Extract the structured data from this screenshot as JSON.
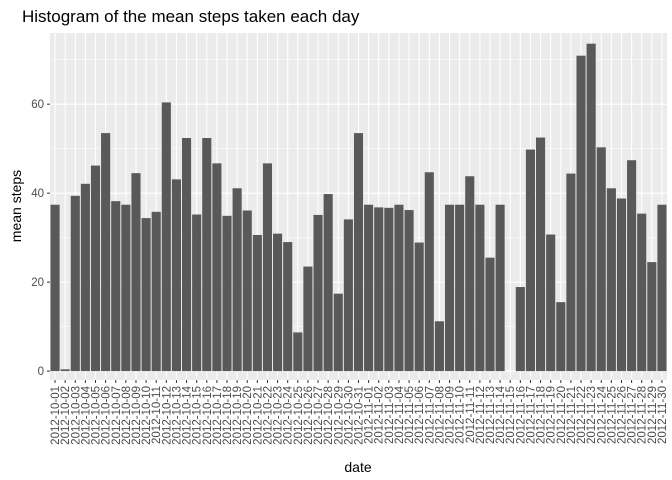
{
  "chart_data": {
    "type": "bar",
    "title": "Histogram of the mean steps taken each day",
    "xlabel": "date",
    "ylabel": "mean steps",
    "ylim": [
      -2,
      76
    ],
    "yticks": [
      0,
      20,
      40,
      60
    ],
    "grid": true,
    "bar_color": "#595959",
    "panel_color": "#ebebeb",
    "categories": [
      "2012-10-01",
      "2012-10-02",
      "2012-10-03",
      "2012-10-04",
      "2012-10-05",
      "2012-10-06",
      "2012-10-07",
      "2012-10-08",
      "2012-10-09",
      "2012-10-10",
      "2012-10-11",
      "2012-10-12",
      "2012-10-13",
      "2012-10-14",
      "2012-10-15",
      "2012-10-16",
      "2012-10-17",
      "2012-10-18",
      "2012-10-19",
      "2012-10-20",
      "2012-10-21",
      "2012-10-22",
      "2012-10-23",
      "2012-10-24",
      "2012-10-25",
      "2012-10-26",
      "2012-10-27",
      "2012-10-28",
      "2012-10-29",
      "2012-10-30",
      "2012-10-31",
      "2012-11-01",
      "2012-11-02",
      "2012-11-03",
      "2012-11-04",
      "2012-11-05",
      "2012-11-06",
      "2012-11-07",
      "2012-11-08",
      "2012-11-09",
      "2012-11-10",
      "2012-11-11",
      "2012-11-12",
      "2012-11-13",
      "2012-11-14",
      "2012-11-15",
      "2012-11-16",
      "2012-11-17",
      "2012-11-18",
      "2012-11-19",
      "2012-11-20",
      "2012-11-21",
      "2012-11-22",
      "2012-11-23",
      "2012-11-24",
      "2012-11-25",
      "2012-11-26",
      "2012-11-27",
      "2012-11-28",
      "2012-11-29",
      "2012-11-30"
    ],
    "values": [
      37.4,
      0.4,
      39.4,
      42.1,
      46.2,
      53.5,
      38.2,
      37.4,
      44.5,
      34.4,
      35.8,
      60.4,
      43.1,
      52.4,
      35.2,
      52.4,
      46.7,
      34.9,
      41.1,
      36.1,
      30.6,
      46.7,
      30.9,
      29.0,
      8.7,
      23.5,
      35.1,
      39.8,
      17.4,
      34.1,
      53.5,
      37.4,
      36.8,
      36.7,
      37.4,
      36.2,
      28.9,
      44.7,
      11.2,
      37.4,
      37.4,
      43.8,
      37.4,
      25.5,
      37.4,
      null,
      18.9,
      49.8,
      52.5,
      30.7,
      15.5,
      44.4,
      70.9,
      73.6,
      50.3,
      41.1,
      38.8,
      47.4,
      35.4,
      24.5,
      37.4
    ]
  }
}
